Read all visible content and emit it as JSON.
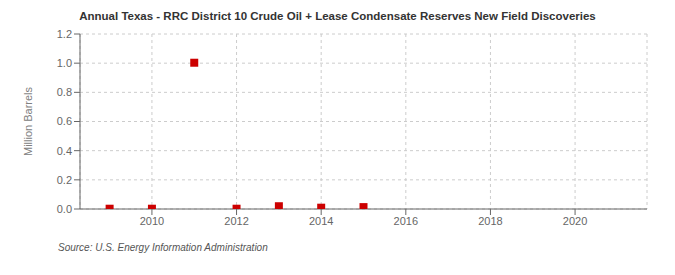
{
  "chart_data": {
    "type": "scatter",
    "title": "Annual Texas - RRC District 10 Crude Oil + Lease Condensate Reserves New Field Discoveries",
    "ylabel": "Million Barrels",
    "annotation": "Source: U.S. Energy Information Administration",
    "x": [
      2009,
      2010,
      2011,
      2012,
      2013,
      2014,
      2015
    ],
    "values": [
      0.002,
      0.002,
      1.003,
      0.002,
      0.019,
      0.009,
      0.013
    ],
    "color": "#cc0000",
    "marker": "square",
    "xlim": [
      2008.3,
      2021.7
    ],
    "xticks": [
      2010,
      2012,
      2014,
      2016,
      2018,
      2020
    ],
    "ylim": [
      0.0,
      1.2
    ],
    "yticks": [
      {
        "value": 0,
        "label": "0.0"
      },
      0.2,
      0.4,
      0.6,
      0.8,
      {
        "value": 1,
        "label": "1.0"
      },
      1.2
    ],
    "grid": true
  }
}
